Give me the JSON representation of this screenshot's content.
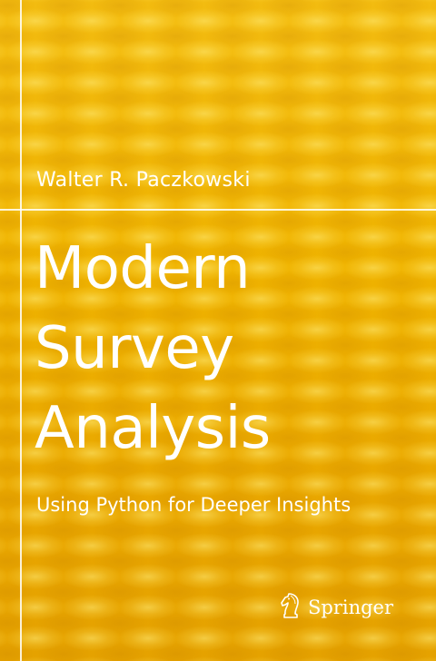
{
  "cover": {
    "author": "Walter R. Paczkowski",
    "title_lines": [
      "Modern",
      "Survey",
      "Analysis"
    ],
    "subtitle": "Using Python for Deeper Insights",
    "publisher": "Springer",
    "publisher_logo_icon": "chess-knight-icon",
    "colors": {
      "background": "#f2b600",
      "text": "#ffffff"
    }
  }
}
